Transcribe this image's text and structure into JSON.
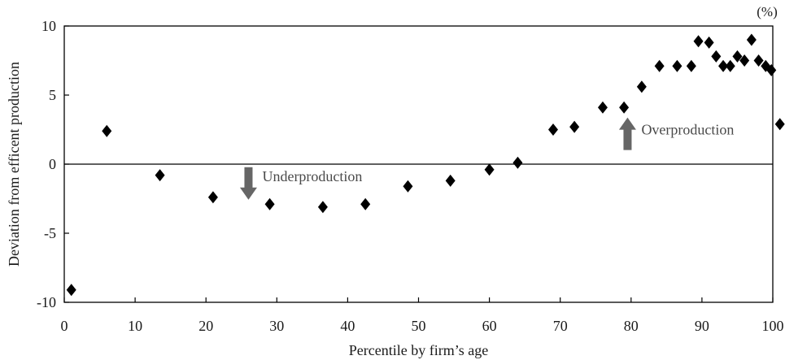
{
  "chart_data": {
    "type": "scatter",
    "unit_label": "(%)",
    "xlabel": "Percentile by firm’s age",
    "ylabel": "Deviation from efficent production",
    "xlim": [
      0,
      100
    ],
    "ylim": [
      -10,
      10
    ],
    "x_ticks": [
      0,
      10,
      20,
      30,
      40,
      50,
      60,
      70,
      80,
      90,
      100
    ],
    "y_ticks": [
      -10,
      -5,
      0,
      5,
      10
    ],
    "grid": false,
    "zero_line": true,
    "marker": "diamond",
    "marker_color": "#000000",
    "annotations": [
      {
        "text": "Underproduction",
        "arrow": "down",
        "x": 26,
        "y": -1.4
      },
      {
        "text": "Overproduction",
        "arrow": "up",
        "x": 79.5,
        "y": 2.2
      }
    ],
    "points": [
      {
        "x": 1,
        "y": -9.1
      },
      {
        "x": 6,
        "y": 2.4
      },
      {
        "x": 13.5,
        "y": -0.8
      },
      {
        "x": 21,
        "y": -2.4
      },
      {
        "x": 29,
        "y": -2.9
      },
      {
        "x": 36.5,
        "y": -3.1
      },
      {
        "x": 42.5,
        "y": -2.9
      },
      {
        "x": 48.5,
        "y": -1.6
      },
      {
        "x": 54.5,
        "y": -1.2
      },
      {
        "x": 60,
        "y": -0.4
      },
      {
        "x": 64,
        "y": 0.1
      },
      {
        "x": 69,
        "y": 2.5
      },
      {
        "x": 72,
        "y": 2.7
      },
      {
        "x": 76,
        "y": 4.1
      },
      {
        "x": 79,
        "y": 4.1
      },
      {
        "x": 81.5,
        "y": 5.6
      },
      {
        "x": 84,
        "y": 7.1
      },
      {
        "x": 86.5,
        "y": 7.1
      },
      {
        "x": 88.5,
        "y": 7.1
      },
      {
        "x": 89.5,
        "y": 8.9
      },
      {
        "x": 91,
        "y": 8.8
      },
      {
        "x": 92,
        "y": 7.8
      },
      {
        "x": 93,
        "y": 7.1
      },
      {
        "x": 94,
        "y": 7.1
      },
      {
        "x": 95,
        "y": 7.8
      },
      {
        "x": 96,
        "y": 7.5
      },
      {
        "x": 97,
        "y": 9.0
      },
      {
        "x": 98,
        "y": 7.5
      },
      {
        "x": 99,
        "y": 7.1
      },
      {
        "x": 99.8,
        "y": 6.8
      },
      {
        "x": 101,
        "y": 2.9
      }
    ]
  }
}
